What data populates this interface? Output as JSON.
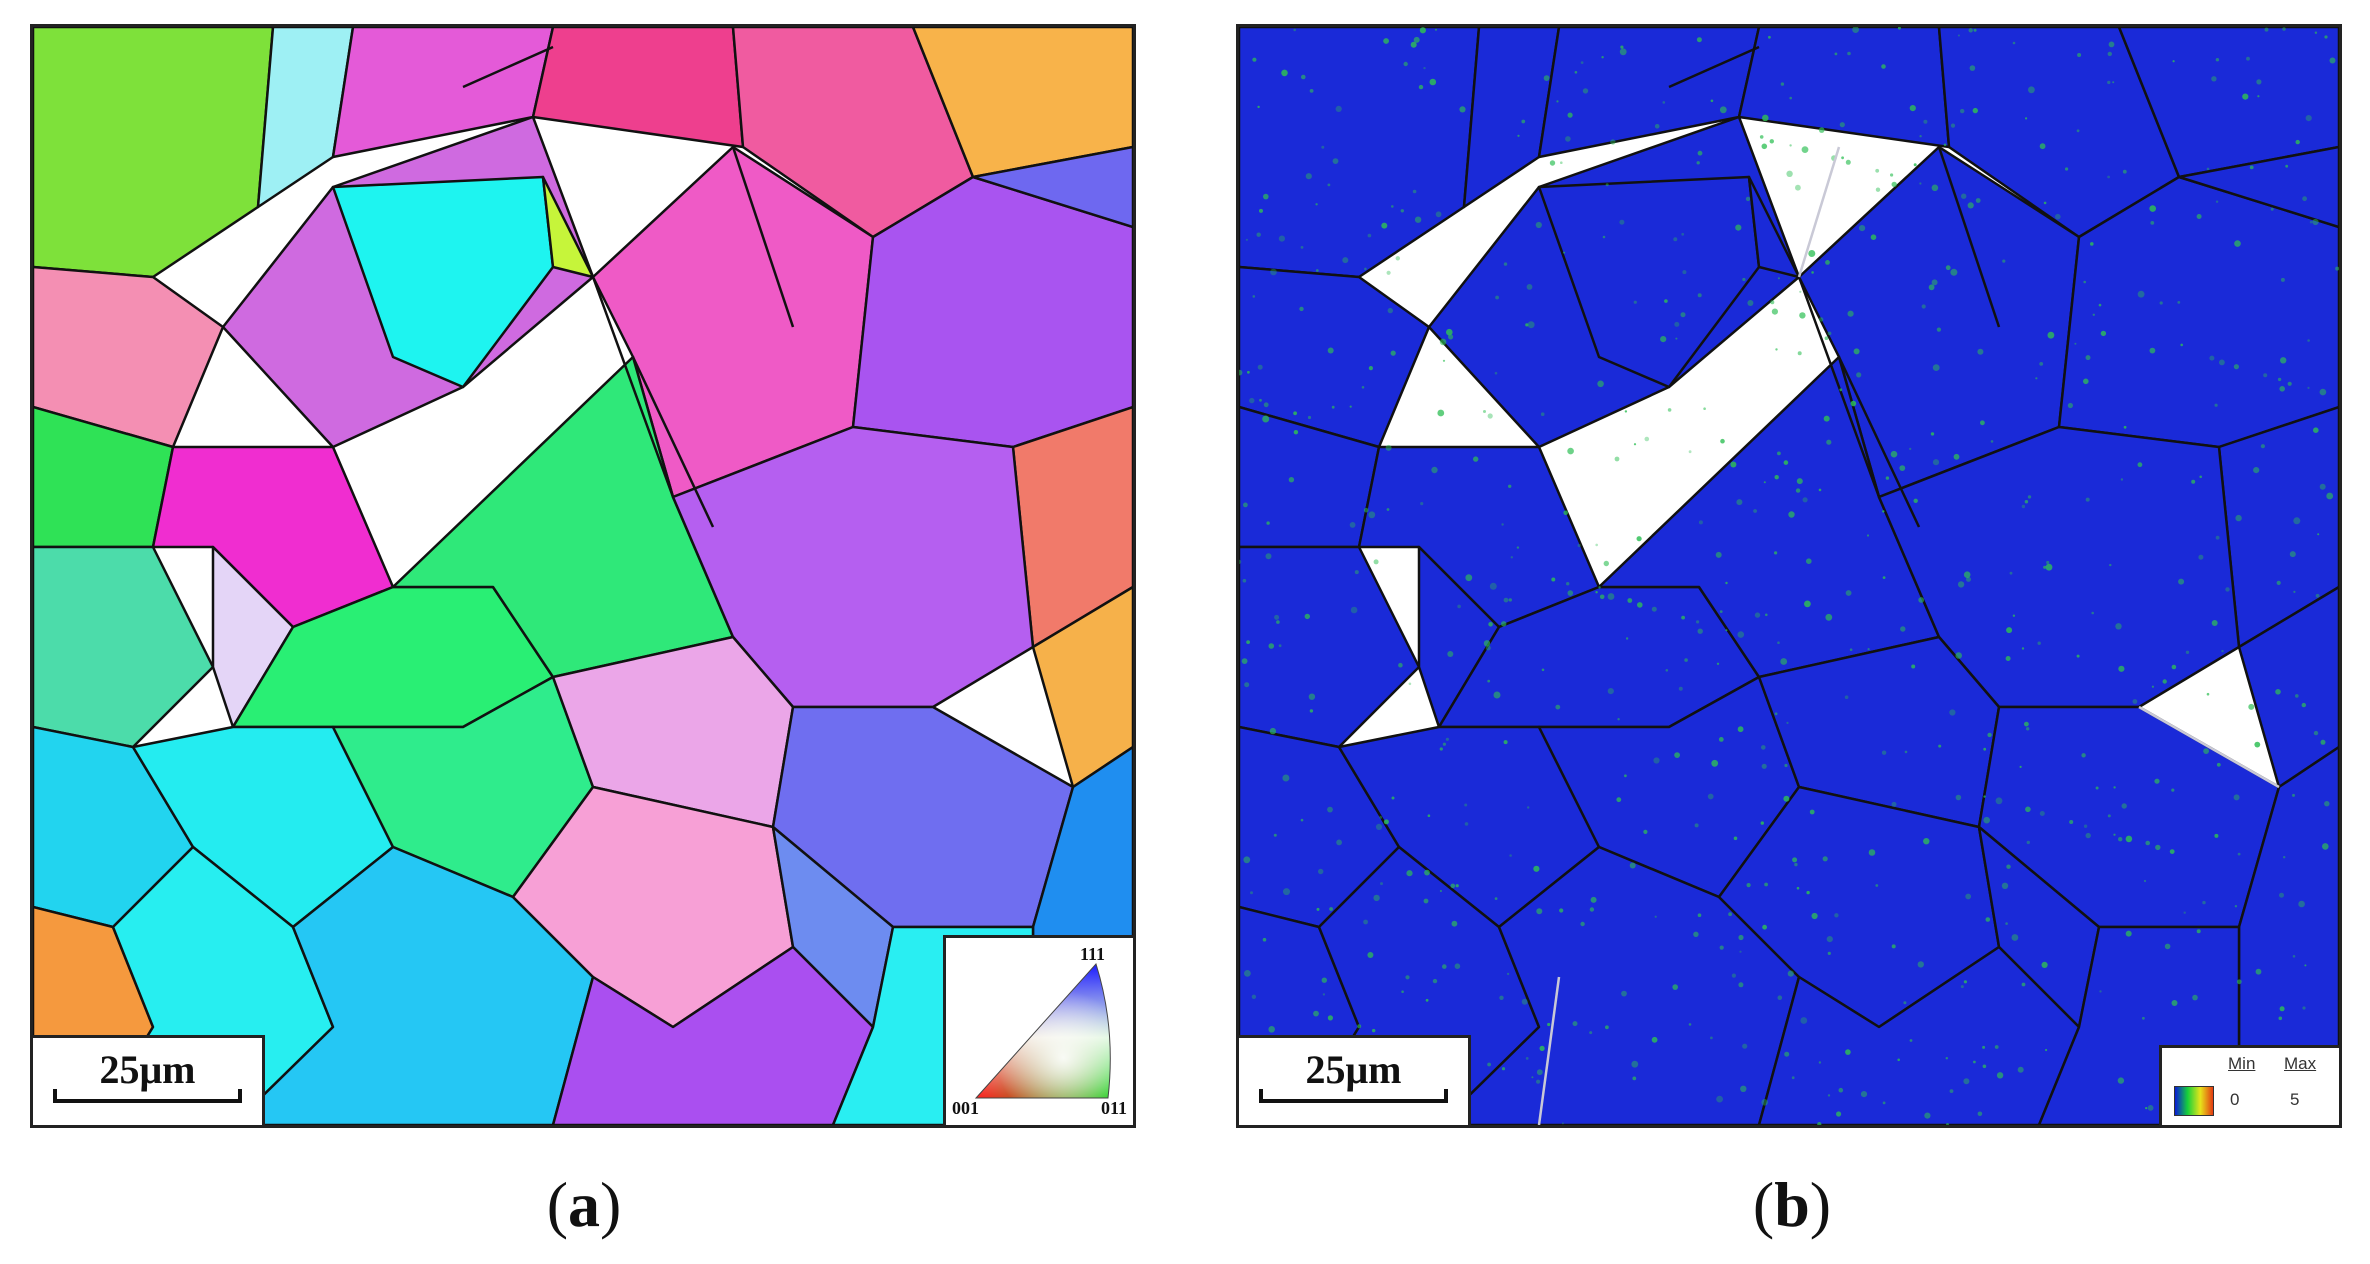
{
  "panels": {
    "a": {
      "caption_open": "(",
      "caption_letter": "a",
      "caption_close": ")",
      "scale_bar": "25μm",
      "ipf_key": {
        "top": "111",
        "left": "001",
        "right": "011"
      }
    },
    "b": {
      "caption_open": "(",
      "caption_letter": "b",
      "caption_close": ")",
      "scale_bar": "25μm",
      "legend": {
        "min_label": "Min",
        "max_label": "Max",
        "min_value": "0",
        "max_value": "5"
      }
    }
  },
  "colors": {
    "grain_boundary": "#111111",
    "kam_background": "#1a2ad8",
    "kam_speckle": "#2fbf55",
    "special_boundary": "#c9c9d6"
  }
}
